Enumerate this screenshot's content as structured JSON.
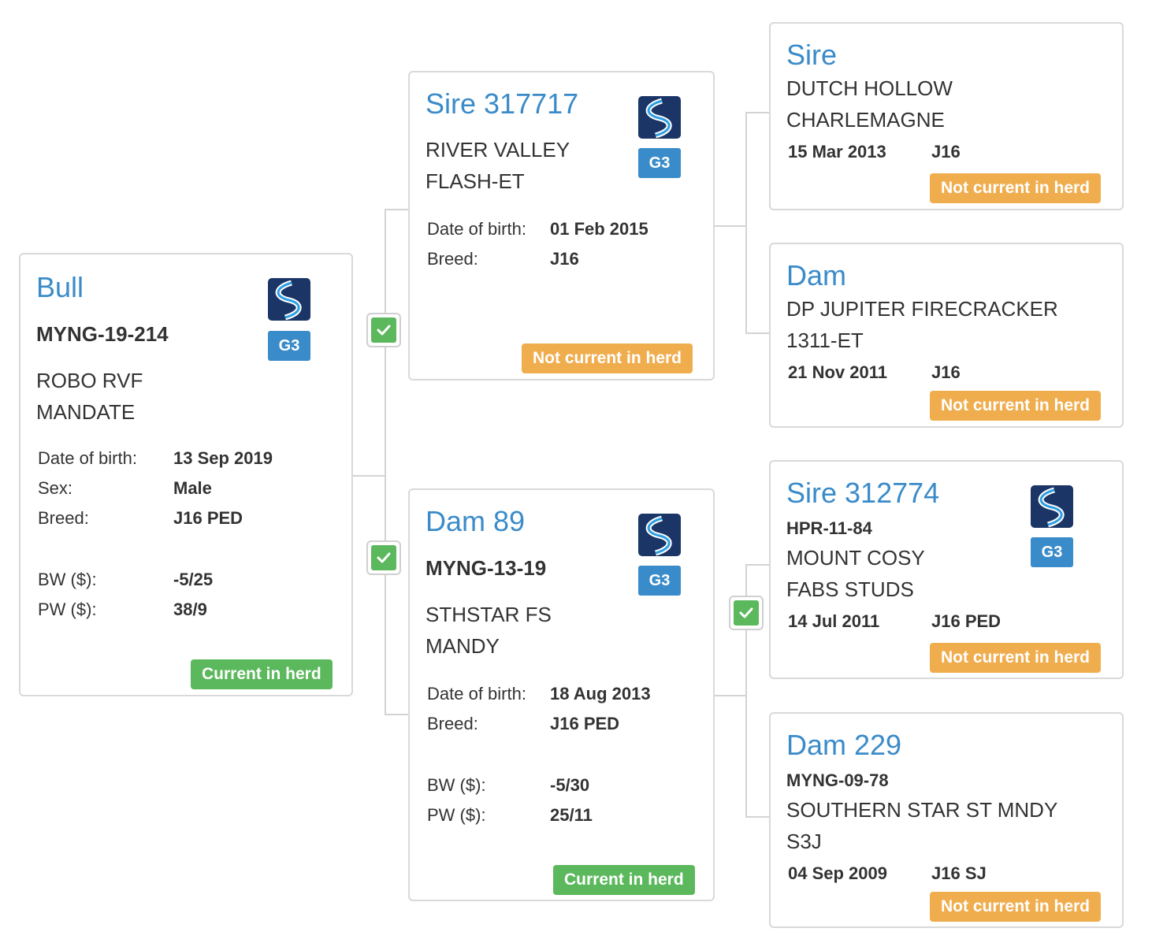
{
  "colors": {
    "title_blue": "#3a8bc9",
    "current_green": "#5cb85c",
    "not_current_orange": "#f0ad4e",
    "border_grey": "#d9d9d9"
  },
  "labels": {
    "dob": "Date of birth:",
    "sex": "Sex:",
    "breed": "Breed:",
    "bw": "BW ($):",
    "pw": "PW ($):"
  },
  "bull": {
    "title": "Bull",
    "reg": "MYNG-19-214",
    "name_line1": "ROBO RVF",
    "name_line2": "MANDATE",
    "dob": "13 Sep 2019",
    "sex": "Male",
    "breed": "J16 PED",
    "bw": "-5/25",
    "pw": "38/9",
    "g3": "G3",
    "status": "Current in herd"
  },
  "sire": {
    "title": "Sire 317717",
    "name_line1": "RIVER VALLEY",
    "name_line2": "FLASH-ET",
    "dob": "01 Feb 2015",
    "breed": "J16",
    "g3": "G3",
    "status": "Not current in herd"
  },
  "dam": {
    "title": "Dam 89",
    "reg": "MYNG-13-19",
    "name_line1": "STHSTAR FS",
    "name_line2": "MANDY",
    "dob": "18 Aug 2013",
    "breed": "J16 PED",
    "bw": "-5/30",
    "pw": "25/11",
    "g3": "G3",
    "status": "Current in herd"
  },
  "sire_sire": {
    "title": "Sire",
    "name_line1": "DUTCH HOLLOW",
    "name_line2": "CHARLEMAGNE",
    "dob": "15 Mar 2013",
    "breed": "J16",
    "status": "Not current in herd"
  },
  "sire_dam": {
    "title": "Dam",
    "name_line1": "DP JUPITER FIRECRACKER",
    "name_line2": "1311-ET",
    "dob": "21 Nov 2011",
    "breed": "J16",
    "status": "Not current in herd"
  },
  "dam_sire": {
    "title": "Sire 312774",
    "reg": "HPR-11-84",
    "name_line1": "MOUNT COSY",
    "name_line2": "FABS STUDS",
    "dob": "14 Jul 2011",
    "breed": "J16 PED",
    "g3": "G3",
    "status": "Not current in herd"
  },
  "dam_dam": {
    "title": "Dam 229",
    "reg": "MYNG-09-78",
    "name_line1": "SOUTHERN STAR ST MNDY",
    "name_line2": "S3J",
    "dob": "04 Sep 2009",
    "breed": "J16 SJ",
    "status": "Not current in herd"
  }
}
